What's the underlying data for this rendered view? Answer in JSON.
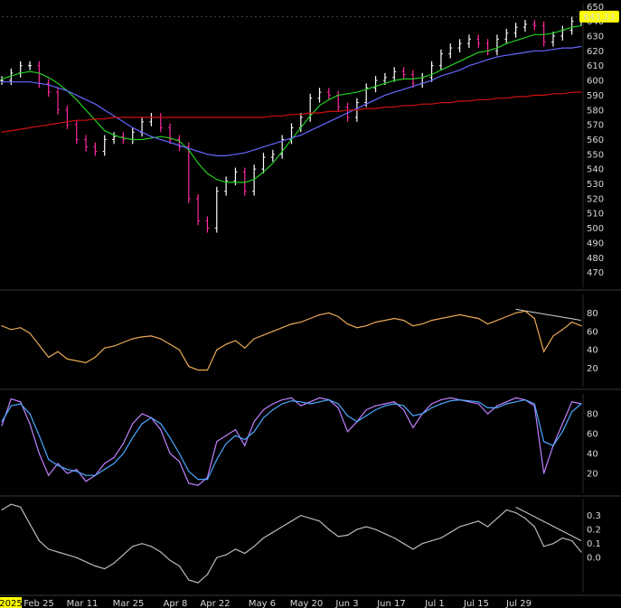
{
  "chart_data": [
    {
      "type": "line",
      "panel": "price",
      "subtype": "ohlc-bars",
      "background": "#000000",
      "x_labels": [
        "2025",
        "Feb 25",
        "Mar 11",
        "Mar 25",
        "Apr 8",
        "Apr 22",
        "May 6",
        "May 20",
        "Jun 3",
        "Jun 17",
        "Jul 1",
        "Jul 15",
        "Jul 29"
      ],
      "year_label": "2025",
      "ylim": [
        460,
        652
      ],
      "yticks": [
        470,
        480,
        490,
        500,
        510,
        520,
        530,
        540,
        550,
        560,
        570,
        580,
        590,
        600,
        610,
        620,
        630,
        640,
        650
      ],
      "last_price": "643.23",
      "last_price_color": "#ffff00",
      "up_bar_color": "#ffffff",
      "down_bar_color": "#ff2aa0",
      "close_series": [
        600,
        605,
        610,
        610,
        598,
        592,
        580,
        570,
        560,
        555,
        552,
        560,
        562,
        560,
        565,
        572,
        575,
        568,
        560,
        555,
        520,
        505,
        500,
        525,
        532,
        538,
        525,
        540,
        548,
        550,
        560,
        568,
        575,
        588,
        592,
        590,
        582,
        575,
        585,
        595,
        600,
        602,
        606,
        604,
        598,
        602,
        610,
        618,
        622,
        625,
        628,
        625,
        620,
        628,
        632,
        636,
        638,
        637,
        626,
        630,
        634,
        640,
        643
      ],
      "series": [
        {
          "name": "20-period moving average",
          "color": "#22cc22",
          "values": [
            601,
            603,
            605,
            606,
            605,
            602,
            598,
            593,
            587,
            580,
            573,
            566,
            563,
            561,
            560,
            560,
            561,
            562,
            561,
            559,
            553,
            544,
            537,
            533,
            531,
            531,
            531,
            533,
            538,
            544,
            552,
            560,
            568,
            576,
            583,
            587,
            590,
            591,
            592,
            594,
            596,
            598,
            600,
            601,
            601,
            602,
            604,
            607,
            610,
            613,
            616,
            619,
            620,
            622,
            625,
            627,
            629,
            631,
            631,
            632,
            634,
            636,
            637
          ]
        },
        {
          "name": "50-period moving average",
          "color": "#6666ff",
          "values": [
            599,
            599,
            599,
            599,
            598,
            597,
            595,
            593,
            590,
            587,
            584,
            580,
            576,
            572,
            568,
            565,
            562,
            560,
            558,
            556,
            554,
            552,
            550,
            549,
            549,
            550,
            551,
            553,
            555,
            557,
            559,
            561,
            563,
            566,
            569,
            572,
            575,
            578,
            581,
            584,
            587,
            590,
            592,
            594,
            596,
            598,
            600,
            603,
            605,
            607,
            610,
            612,
            614,
            616,
            617,
            618,
            619,
            620,
            620,
            621,
            622,
            622,
            623
          ]
        },
        {
          "name": "200-period moving average",
          "color": "#cc1111",
          "values": [
            565,
            566,
            567,
            568,
            569,
            570,
            571,
            572,
            573,
            573,
            574,
            574,
            575,
            575,
            575,
            575,
            575,
            575,
            575,
            575,
            575,
            575,
            575,
            575,
            575,
            575,
            575,
            575,
            575,
            576,
            576,
            577,
            577,
            578,
            578,
            579,
            579,
            580,
            580,
            581,
            581,
            582,
            582,
            583,
            583,
            584,
            584,
            585,
            585,
            586,
            586,
            587,
            587,
            588,
            588,
            589,
            589,
            590,
            590,
            591,
            591,
            592,
            592
          ]
        }
      ]
    },
    {
      "type": "line",
      "panel": "oscillator-1",
      "ylim": [
        0,
        100
      ],
      "yticks": [
        20,
        40,
        60,
        80
      ],
      "series": [
        {
          "name": "line",
          "color": "#e8a858",
          "values": [
            66,
            62,
            64,
            58,
            45,
            32,
            38,
            30,
            28,
            26,
            32,
            42,
            44,
            48,
            52,
            54,
            55,
            52,
            46,
            40,
            22,
            18,
            18,
            40,
            46,
            50,
            42,
            52,
            56,
            60,
            64,
            68,
            70,
            74,
            78,
            80,
            76,
            68,
            64,
            66,
            70,
            72,
            74,
            72,
            66,
            68,
            72,
            74,
            76,
            78,
            76,
            74,
            68,
            72,
            76,
            80,
            82,
            74,
            38,
            55,
            62,
            70,
            66
          ]
        }
      ],
      "trendline": {
        "color": "#d8d8d8",
        "from": {
          "x_index": 55,
          "y": 84
        },
        "to": {
          "x_index": 62,
          "y": 72
        }
      }
    },
    {
      "type": "line",
      "panel": "oscillator-2",
      "ylim": [
        0,
        100
      ],
      "yticks": [
        20,
        40,
        60,
        80
      ],
      "series": [
        {
          "name": "fast line",
          "color": "#c080ff",
          "values": [
            68,
            95,
            92,
            70,
            40,
            18,
            30,
            20,
            24,
            12,
            18,
            30,
            36,
            50,
            70,
            80,
            76,
            64,
            40,
            32,
            10,
            8,
            16,
            52,
            58,
            64,
            48,
            72,
            84,
            90,
            94,
            96,
            88,
            92,
            96,
            94,
            86,
            62,
            72,
            84,
            88,
            90,
            92,
            84,
            66,
            80,
            90,
            94,
            96,
            94,
            92,
            90,
            80,
            88,
            92,
            96,
            94,
            88,
            20,
            48,
            70,
            92,
            90
          ]
        },
        {
          "name": "slow line",
          "color": "#4aa8ff",
          "values": [
            72,
            88,
            90,
            80,
            58,
            34,
            28,
            24,
            22,
            18,
            18,
            24,
            30,
            40,
            56,
            70,
            76,
            70,
            56,
            40,
            22,
            14,
            14,
            34,
            50,
            58,
            54,
            62,
            76,
            84,
            90,
            93,
            92,
            90,
            92,
            94,
            90,
            78,
            72,
            78,
            84,
            88,
            90,
            88,
            78,
            80,
            86,
            90,
            93,
            94,
            93,
            92,
            86,
            86,
            90,
            92,
            94,
            90,
            52,
            48,
            62,
            82,
            90
          ]
        }
      ]
    },
    {
      "type": "line",
      "panel": "oscillator-3",
      "ylim": [
        -0.25,
        0.42
      ],
      "yticks": [
        0.0,
        0.1,
        0.2,
        0.3
      ],
      "ytick_labels": [
        "0.0",
        "0.1",
        "0.2",
        "0.3"
      ],
      "series": [
        {
          "name": "line",
          "color": "#b8b8b8",
          "values": [
            0.34,
            0.38,
            0.36,
            0.24,
            0.12,
            0.06,
            0.04,
            0.02,
            0.0,
            -0.03,
            -0.06,
            -0.08,
            -0.04,
            0.02,
            0.08,
            0.1,
            0.08,
            0.04,
            -0.02,
            -0.06,
            -0.16,
            -0.18,
            -0.12,
            0.0,
            0.02,
            0.06,
            0.03,
            0.08,
            0.14,
            0.18,
            0.22,
            0.26,
            0.3,
            0.28,
            0.26,
            0.2,
            0.15,
            0.16,
            0.2,
            0.22,
            0.2,
            0.17,
            0.14,
            0.1,
            0.06,
            0.1,
            0.12,
            0.14,
            0.18,
            0.22,
            0.24,
            0.26,
            0.22,
            0.28,
            0.34,
            0.32,
            0.28,
            0.22,
            0.08,
            0.1,
            0.14,
            0.12,
            0.04
          ]
        }
      ],
      "trendline": {
        "color": "#d8d8d8",
        "from": {
          "x_index": 55,
          "y": 0.36
        },
        "to": {
          "x_index": 62,
          "y": 0.12
        }
      }
    }
  ]
}
